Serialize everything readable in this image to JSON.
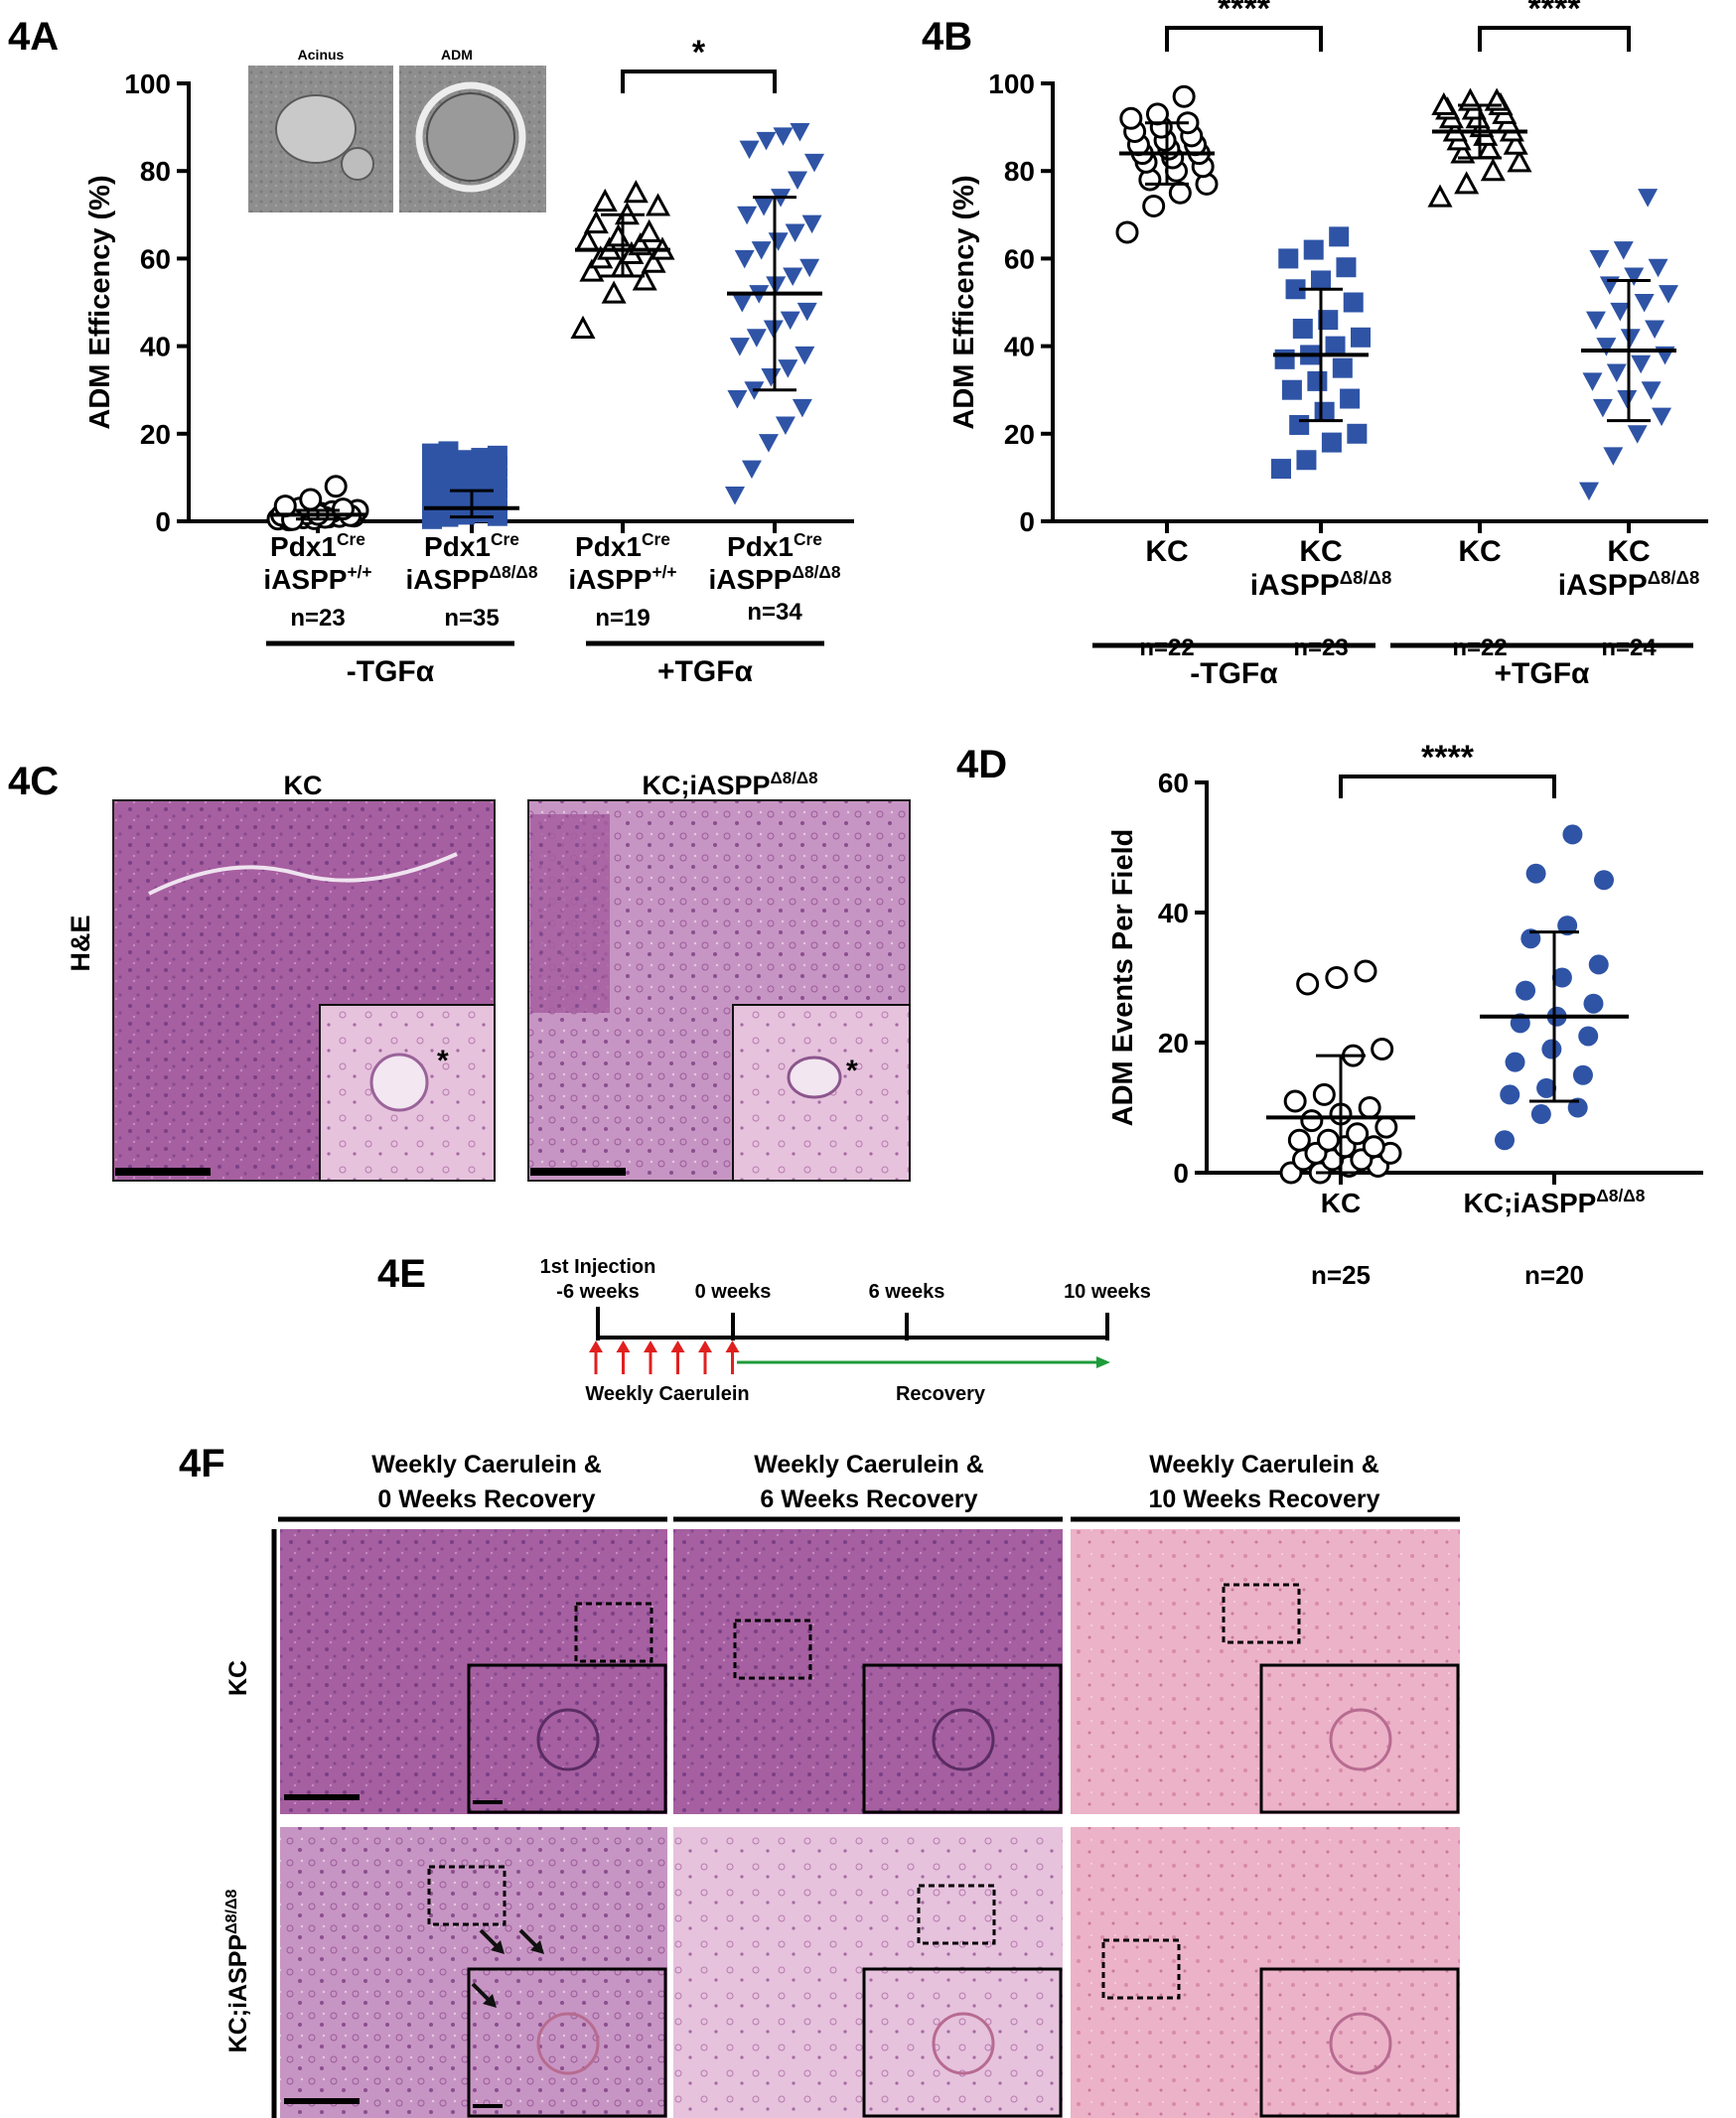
{
  "colors": {
    "blue": "#2F54A6",
    "black": "#000000",
    "he_dark": "#A45C9E",
    "he_light": "#E8AEC6",
    "he_mid": "#C58AB9"
  },
  "panels": {
    "a": "4A",
    "b": "4B",
    "c": "4C",
    "d": "4D",
    "e": "4E",
    "f": "4F"
  },
  "chart_data": [
    {
      "id": "4A",
      "type": "scatter",
      "ylabel": "ADM Efficency (%)",
      "ylim": [
        0,
        100
      ],
      "yticks": [
        "0",
        "20",
        "40",
        "60",
        "80",
        "100"
      ],
      "inset_labels": [
        "Acinus",
        "ADM"
      ],
      "significance": "*",
      "groups_labels": [
        "-TGFα",
        "+TGFα"
      ],
      "categories": [
        {
          "line1": "Pdx1",
          "line1_sup": "Cre",
          "line2": "iASPP",
          "line2_sup": "+/+",
          "n": "n=23",
          "marker": "circle-open",
          "mean": 1.5,
          "sd_low": 0.5,
          "sd_high": 2.5,
          "values": [
            0.5,
            0.8,
            1,
            1.2,
            1.5,
            1.8,
            2,
            0.3,
            0.6,
            1.1,
            1.4,
            1.7,
            2.2,
            2.5,
            3,
            0.9,
            1.3,
            0.4,
            1.6,
            2.8,
            3.5,
            5,
            8
          ]
        },
        {
          "line1": "Pdx1",
          "line1_sup": "Cre",
          "line2": "iASPP",
          "line2_sup": "Δ8/Δ8",
          "n": "n=35",
          "marker": "square-filled",
          "mean": 3,
          "sd_low": 1,
          "sd_high": 7,
          "values": [
            0.5,
            1,
            1.5,
            2,
            2.5,
            3,
            3.5,
            4,
            4.5,
            5,
            5.5,
            6,
            6.5,
            7,
            7.5,
            8,
            8.5,
            9,
            9.5,
            10,
            10.5,
            11,
            11.5,
            12,
            12.5,
            13,
            13.5,
            14,
            14.5,
            15,
            15.5,
            16,
            2.2,
            3.2,
            1.2
          ]
        },
        {
          "line1": "Pdx1",
          "line1_sup": "Cre",
          "line2": "iASPP",
          "line2_sup": "+/+",
          "n": "n=19",
          "marker": "triangle-up-open",
          "mean": 62,
          "sd_low": 56,
          "sd_high": 70,
          "values": [
            44,
            52,
            55,
            57,
            58,
            59,
            60,
            61,
            62,
            62,
            63,
            64,
            65,
            66,
            68,
            70,
            72,
            73,
            75
          ]
        },
        {
          "line1": "Pdx1",
          "line1_sup": "Cre",
          "line2": "iASPP",
          "line2_sup": "Δ8/Δ8",
          "n": "n=34",
          "marker": "triangle-down-filled",
          "mean": 52,
          "sd_low": 30,
          "sd_high": 74,
          "values": [
            6,
            12,
            18,
            22,
            26,
            28,
            30,
            33,
            35,
            38,
            40,
            42,
            44,
            46,
            48,
            50,
            52,
            54,
            56,
            58,
            60,
            62,
            64,
            66,
            68,
            70,
            72,
            74,
            78,
            82,
            85,
            87,
            88,
            89
          ]
        }
      ]
    },
    {
      "id": "4B",
      "type": "scatter",
      "ylabel": "ADM Efficency (%)",
      "ylim": [
        0,
        100
      ],
      "yticks": [
        "0",
        "20",
        "40",
        "60",
        "80",
        "100"
      ],
      "significance": [
        "****",
        "****"
      ],
      "groups_labels": [
        "-TGFα",
        "+TGFα"
      ],
      "categories": [
        {
          "line1": "KC",
          "line2": "",
          "line2_sup": "",
          "n": "n=22",
          "marker": "circle-open",
          "mean": 84,
          "sd_low": 77,
          "sd_high": 91,
          "values": [
            66,
            72,
            75,
            77,
            78,
            80,
            81,
            82,
            83,
            84,
            84,
            85,
            86,
            86,
            87,
            88,
            89,
            90,
            91,
            92,
            93,
            97
          ]
        },
        {
          "line1": "KC",
          "line2": "iASPP",
          "line2_sup": "Δ8/Δ8",
          "n": "n=23",
          "marker": "square-filled",
          "mean": 38,
          "sd_low": 23,
          "sd_high": 53,
          "values": [
            12,
            14,
            18,
            20,
            22,
            25,
            28,
            30,
            32,
            35,
            37,
            38,
            40,
            42,
            44,
            46,
            50,
            53,
            55,
            58,
            60,
            62,
            65
          ]
        },
        {
          "line1": "KC",
          "line2": "",
          "line2_sup": "",
          "n": "n=22",
          "marker": "triangle-up-open",
          "mean": 89,
          "sd_low": 83,
          "sd_high": 95,
          "values": [
            74,
            77,
            80,
            82,
            84,
            85,
            86,
            87,
            88,
            89,
            89,
            90,
            91,
            92,
            92,
            93,
            94,
            94,
            95,
            95,
            96,
            96
          ]
        },
        {
          "line1": "KC",
          "line2": "iASPP",
          "line2_sup": "Δ8/Δ8",
          "n": "n=24",
          "marker": "triangle-down-filled",
          "mean": 39,
          "sd_low": 23,
          "sd_high": 55,
          "values": [
            7,
            15,
            20,
            24,
            26,
            28,
            30,
            32,
            34,
            36,
            38,
            40,
            42,
            44,
            46,
            48,
            50,
            52,
            54,
            56,
            58,
            60,
            62,
            74
          ]
        }
      ]
    },
    {
      "id": "4D",
      "type": "scatter",
      "ylabel": "ADM Events Per Field",
      "ylim": [
        0,
        60
      ],
      "yticks": [
        "0",
        "20",
        "40",
        "60"
      ],
      "significance": "****",
      "categories": [
        {
          "line1": "KC",
          "line2": "",
          "line2_sup": "",
          "n": "n=25",
          "marker": "circle-open",
          "mean": 8.5,
          "sd_low": 0,
          "sd_high": 18,
          "values": [
            0,
            0,
            1,
            1,
            2,
            2,
            2,
            3,
            3,
            4,
            4,
            5,
            5,
            6,
            7,
            8,
            9,
            10,
            11,
            12,
            18,
            19,
            29,
            30,
            31
          ]
        },
        {
          "line1": "KC;iASPP",
          "line2": "",
          "line2_sup": "Δ8/Δ8",
          "n": "n=20",
          "marker": "circle-filled",
          "mean": 24,
          "sd_low": 11,
          "sd_high": 37,
          "values": [
            5,
            9,
            10,
            12,
            13,
            15,
            17,
            19,
            21,
            23,
            24,
            26,
            28,
            30,
            32,
            36,
            38,
            45,
            46,
            52
          ]
        }
      ]
    }
  ],
  "panel_c": {
    "col_labels": [
      "KC",
      "KC;iASPP"
    ],
    "col_label_sup": "Δ8/Δ8",
    "row_label": "H&E",
    "asterisk": "*"
  },
  "panel_e": {
    "labels": [
      "1st Injection",
      "-6 weeks",
      "0 weeks",
      "6 weeks",
      "10 weeks"
    ],
    "caerulein": "Weekly Caerulein",
    "recovery": "Recovery"
  },
  "panel_f": {
    "col_labels": [
      [
        "Weekly Caerulein &",
        "0 Weeks Recovery"
      ],
      [
        "Weekly Caerulein &",
        "6 Weeks Recovery"
      ],
      [
        "Weekly Caerulein &",
        "10 Weeks Recovery"
      ]
    ],
    "row_labels": [
      "KC",
      "KC;iASPP"
    ],
    "row_label_sup": "Δ8/Δ8"
  }
}
